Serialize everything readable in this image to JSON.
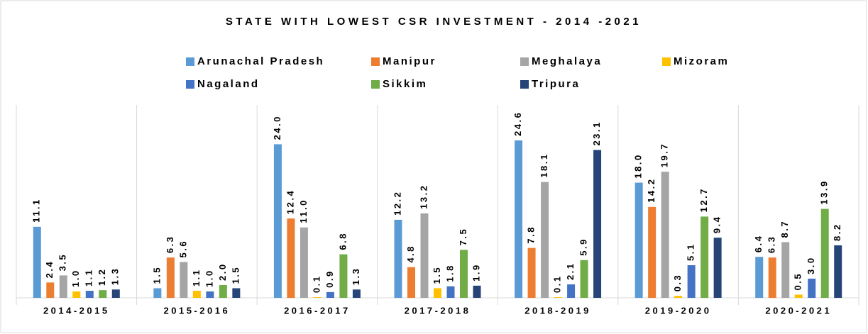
{
  "chart_data": {
    "type": "bar",
    "title": "STATE WITH LOWEST CSR INVESTMENT - 2014 -2021",
    "categories": [
      "2014-2015",
      "2015-2016",
      "2016-2017",
      "2017-2018",
      "2018-2019",
      "2019-2020",
      "2020-2021"
    ],
    "series": [
      {
        "name": "Arunachal Pradesh",
        "color": "#5b9bd5",
        "values": [
          11.1,
          1.5,
          24,
          12.2,
          24.6,
          18,
          6.4
        ],
        "value_labels": [
          "11.1",
          "1.5",
          "24.0",
          "12.2",
          "24.6",
          "18.0",
          "6.4"
        ]
      },
      {
        "name": "Manipur",
        "color": "#ed7d31",
        "values": [
          2.4,
          6.3,
          12.4,
          4.8,
          7.8,
          14.2,
          6.3
        ],
        "value_labels": [
          "2.4",
          "6.3",
          "12.4",
          "4.8",
          "7.8",
          "14.2",
          "6.3"
        ]
      },
      {
        "name": "Meghalaya",
        "color": "#a5a5a5",
        "values": [
          3.5,
          5.6,
          11,
          13.2,
          18.1,
          19.7,
          8.7
        ],
        "value_labels": [
          "3.5",
          "5.6",
          "11.0",
          "13.2",
          "18.1",
          "19.7",
          "8.7"
        ]
      },
      {
        "name": "Mizoram",
        "color": "#ffc000",
        "values": [
          1,
          1.1,
          0.1,
          1.5,
          0.1,
          0.3,
          0.5
        ],
        "value_labels": [
          "1.0",
          "1.1",
          "0.1",
          "1.5",
          "0.1",
          "0.3",
          "0.5"
        ]
      },
      {
        "name": "Nagaland",
        "color": "#4472c4",
        "values": [
          1.1,
          1,
          0.9,
          1.8,
          2.1,
          5.1,
          3
        ],
        "value_labels": [
          "1.1",
          "1.0",
          "0.9",
          "1.8",
          "2.1",
          "5.1",
          "3.0"
        ]
      },
      {
        "name": "Sikkim",
        "color": "#70ad47",
        "values": [
          1.2,
          2,
          6.8,
          7.5,
          5.9,
          12.7,
          13.9
        ],
        "value_labels": [
          "1.2",
          "2.0",
          "6.8",
          "7.5",
          "5.9",
          "12.7",
          "13.9"
        ]
      },
      {
        "name": "Tripura",
        "color": "#264478",
        "values": [
          1.3,
          1.5,
          1.3,
          1.9,
          23.1,
          9.4,
          8.2
        ],
        "value_labels": [
          "1.3",
          "1.5",
          "1.3",
          "1.9",
          "23.1",
          "9.4",
          "8.2"
        ]
      }
    ]
  }
}
